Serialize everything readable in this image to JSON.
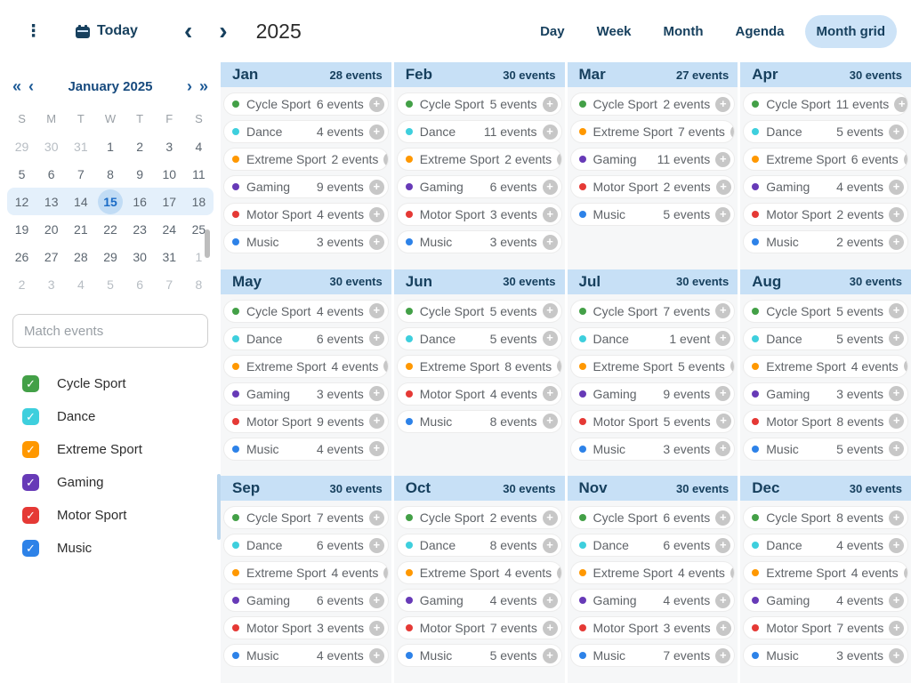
{
  "toolbar": {
    "menu_icon": "⋮",
    "today_label": "Today",
    "prev_icon": "‹",
    "next_icon": "›",
    "title": "2025",
    "views": [
      {
        "label": "Day",
        "active": false
      },
      {
        "label": "Week",
        "active": false
      },
      {
        "label": "Month",
        "active": false
      },
      {
        "label": "Agenda",
        "active": false
      },
      {
        "label": "Month grid",
        "active": true
      }
    ]
  },
  "sidebar": {
    "mini_calendar": {
      "prev_year_icon": "«",
      "prev_month_icon": "‹",
      "next_month_icon": "›",
      "next_year_icon": "»",
      "title": "January 2025",
      "day_headers": [
        "S",
        "M",
        "T",
        "W",
        "T",
        "F",
        "S"
      ],
      "selected_day": "15",
      "weeks": [
        {
          "current": false,
          "days": [
            {
              "t": "29",
              "muted": true
            },
            {
              "t": "30",
              "muted": true
            },
            {
              "t": "31",
              "muted": true
            },
            {
              "t": "1"
            },
            {
              "t": "2"
            },
            {
              "t": "3"
            },
            {
              "t": "4"
            }
          ]
        },
        {
          "current": false,
          "days": [
            {
              "t": "5"
            },
            {
              "t": "6"
            },
            {
              "t": "7"
            },
            {
              "t": "8"
            },
            {
              "t": "9"
            },
            {
              "t": "10"
            },
            {
              "t": "11"
            }
          ]
        },
        {
          "current": true,
          "days": [
            {
              "t": "12"
            },
            {
              "t": "13"
            },
            {
              "t": "14"
            },
            {
              "t": "15",
              "selected": true
            },
            {
              "t": "16"
            },
            {
              "t": "17"
            },
            {
              "t": "18"
            }
          ]
        },
        {
          "current": false,
          "days": [
            {
              "t": "19"
            },
            {
              "t": "20"
            },
            {
              "t": "21"
            },
            {
              "t": "22"
            },
            {
              "t": "23"
            },
            {
              "t": "24"
            },
            {
              "t": "25"
            }
          ]
        },
        {
          "current": false,
          "days": [
            {
              "t": "26"
            },
            {
              "t": "27"
            },
            {
              "t": "28"
            },
            {
              "t": "29"
            },
            {
              "t": "30"
            },
            {
              "t": "31"
            },
            {
              "t": "1",
              "muted": true
            }
          ]
        },
        {
          "current": false,
          "days": [
            {
              "t": "2",
              "muted": true
            },
            {
              "t": "3",
              "muted": true
            },
            {
              "t": "4",
              "muted": true
            },
            {
              "t": "5",
              "muted": true
            },
            {
              "t": "6",
              "muted": true
            },
            {
              "t": "7",
              "muted": true
            },
            {
              "t": "8",
              "muted": true
            }
          ]
        }
      ]
    },
    "search_placeholder": "Match events",
    "check_icon": "✓",
    "filters": [
      {
        "label": "Cycle Sport",
        "color": "#43a047",
        "checked": true
      },
      {
        "label": "Dance",
        "color": "#3ecfdd",
        "checked": true
      },
      {
        "label": "Extreme Sport",
        "color": "#ff9800",
        "checked": true
      },
      {
        "label": "Gaming",
        "color": "#673ab7",
        "checked": true
      },
      {
        "label": "Motor Sport",
        "color": "#e53935",
        "checked": true
      },
      {
        "label": "Music",
        "color": "#2d82e8",
        "checked": true
      }
    ]
  },
  "category_colors": {
    "Cycle Sport": "#43a047",
    "Dance": "#3ecfdd",
    "Extreme Sport": "#ff9800",
    "Gaming": "#673ab7",
    "Motor Sport": "#e53935",
    "Music": "#2d82e8"
  },
  "add_icon": "+",
  "months": [
    {
      "name": "Jan",
      "total": "28 events",
      "events": [
        {
          "category": "Cycle Sport",
          "count": "6 events"
        },
        {
          "category": "Dance",
          "count": "4 events"
        },
        {
          "category": "Extreme Sport",
          "count": "2 events"
        },
        {
          "category": "Gaming",
          "count": "9 events"
        },
        {
          "category": "Motor Sport",
          "count": "4 events"
        },
        {
          "category": "Music",
          "count": "3 events"
        }
      ]
    },
    {
      "name": "Feb",
      "total": "30 events",
      "events": [
        {
          "category": "Cycle Sport",
          "count": "5 events"
        },
        {
          "category": "Dance",
          "count": "11 events"
        },
        {
          "category": "Extreme Sport",
          "count": "2 events"
        },
        {
          "category": "Gaming",
          "count": "6 events"
        },
        {
          "category": "Motor Sport",
          "count": "3 events"
        },
        {
          "category": "Music",
          "count": "3 events"
        }
      ]
    },
    {
      "name": "Mar",
      "total": "27 events",
      "events": [
        {
          "category": "Cycle Sport",
          "count": "2 events"
        },
        {
          "category": "Extreme Sport",
          "count": "7 events"
        },
        {
          "category": "Gaming",
          "count": "11 events"
        },
        {
          "category": "Motor Sport",
          "count": "2 events"
        },
        {
          "category": "Music",
          "count": "5 events"
        }
      ]
    },
    {
      "name": "Apr",
      "total": "30 events",
      "events": [
        {
          "category": "Cycle Sport",
          "count": "11 events"
        },
        {
          "category": "Dance",
          "count": "5 events"
        },
        {
          "category": "Extreme Sport",
          "count": "6 events"
        },
        {
          "category": "Gaming",
          "count": "4 events"
        },
        {
          "category": "Motor Sport",
          "count": "2 events"
        },
        {
          "category": "Music",
          "count": "2 events"
        }
      ]
    },
    {
      "name": "May",
      "total": "30 events",
      "events": [
        {
          "category": "Cycle Sport",
          "count": "4 events"
        },
        {
          "category": "Dance",
          "count": "6 events"
        },
        {
          "category": "Extreme Sport",
          "count": "4 events"
        },
        {
          "category": "Gaming",
          "count": "3 events"
        },
        {
          "category": "Motor Sport",
          "count": "9 events"
        },
        {
          "category": "Music",
          "count": "4 events"
        }
      ]
    },
    {
      "name": "Jun",
      "total": "30 events",
      "events": [
        {
          "category": "Cycle Sport",
          "count": "5 events"
        },
        {
          "category": "Dance",
          "count": "5 events"
        },
        {
          "category": "Extreme Sport",
          "count": "8 events"
        },
        {
          "category": "Motor Sport",
          "count": "4 events"
        },
        {
          "category": "Music",
          "count": "8 events"
        }
      ]
    },
    {
      "name": "Jul",
      "total": "30 events",
      "events": [
        {
          "category": "Cycle Sport",
          "count": "7 events"
        },
        {
          "category": "Dance",
          "count": "1 event"
        },
        {
          "category": "Extreme Sport",
          "count": "5 events"
        },
        {
          "category": "Gaming",
          "count": "9 events"
        },
        {
          "category": "Motor Sport",
          "count": "5 events"
        },
        {
          "category": "Music",
          "count": "3 events"
        }
      ]
    },
    {
      "name": "Aug",
      "total": "30 events",
      "events": [
        {
          "category": "Cycle Sport",
          "count": "5 events"
        },
        {
          "category": "Dance",
          "count": "5 events"
        },
        {
          "category": "Extreme Sport",
          "count": "4 events"
        },
        {
          "category": "Gaming",
          "count": "3 events"
        },
        {
          "category": "Motor Sport",
          "count": "8 events"
        },
        {
          "category": "Music",
          "count": "5 events"
        }
      ]
    },
    {
      "name": "Sep",
      "total": "30 events",
      "events": [
        {
          "category": "Cycle Sport",
          "count": "7 events"
        },
        {
          "category": "Dance",
          "count": "6 events"
        },
        {
          "category": "Extreme Sport",
          "count": "4 events"
        },
        {
          "category": "Gaming",
          "count": "6 events"
        },
        {
          "category": "Motor Sport",
          "count": "3 events"
        },
        {
          "category": "Music",
          "count": "4 events"
        }
      ]
    },
    {
      "name": "Oct",
      "total": "30 events",
      "events": [
        {
          "category": "Cycle Sport",
          "count": "2 events"
        },
        {
          "category": "Dance",
          "count": "8 events"
        },
        {
          "category": "Extreme Sport",
          "count": "4 events"
        },
        {
          "category": "Gaming",
          "count": "4 events"
        },
        {
          "category": "Motor Sport",
          "count": "7 events"
        },
        {
          "category": "Music",
          "count": "5 events"
        }
      ]
    },
    {
      "name": "Nov",
      "total": "30 events",
      "events": [
        {
          "category": "Cycle Sport",
          "count": "6 events"
        },
        {
          "category": "Dance",
          "count": "6 events"
        },
        {
          "category": "Extreme Sport",
          "count": "4 events"
        },
        {
          "category": "Gaming",
          "count": "4 events"
        },
        {
          "category": "Motor Sport",
          "count": "3 events"
        },
        {
          "category": "Music",
          "count": "7 events"
        }
      ]
    },
    {
      "name": "Dec",
      "total": "30 events",
      "events": [
        {
          "category": "Cycle Sport",
          "count": "8 events"
        },
        {
          "category": "Dance",
          "count": "4 events"
        },
        {
          "category": "Extreme Sport",
          "count": "4 events"
        },
        {
          "category": "Gaming",
          "count": "4 events"
        },
        {
          "category": "Motor Sport",
          "count": "7 events"
        },
        {
          "category": "Music",
          "count": "3 events"
        }
      ]
    }
  ]
}
